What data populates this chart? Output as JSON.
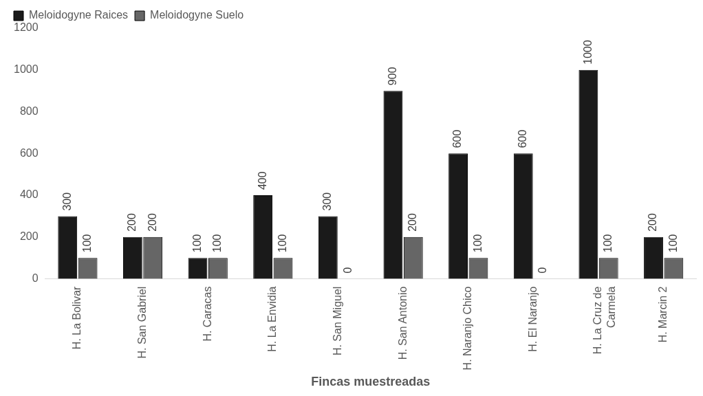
{
  "chart_data": {
    "type": "bar",
    "xlabel": "Fincas muestreadas",
    "categories": [
      "H. La Bolivar",
      "H. San Gabriel",
      "H. Caracas",
      "H. La Envidia",
      "H. San Miguel",
      "H. San Antonio",
      "H. Naranjo Chico",
      "H. El Naranjo",
      "H. La Cruz de Carmela",
      "H. Marcin 2"
    ],
    "series": [
      {
        "name": "Meloidogyne Raices",
        "color": "#1a1a1a",
        "values": [
          300,
          200,
          100,
          400,
          300,
          900,
          600,
          600,
          1000,
          200
        ]
      },
      {
        "name": "Meloidogyne Suelo",
        "color": "#666666",
        "values": [
          100,
          200,
          100,
          100,
          0,
          200,
          100,
          0,
          100,
          100
        ]
      }
    ],
    "ylim": [
      0,
      1200
    ],
    "yticks": [
      0,
      200,
      400,
      600,
      800,
      1000,
      1200
    ],
    "grid": false,
    "legend": "top left",
    "data_labels": true
  }
}
